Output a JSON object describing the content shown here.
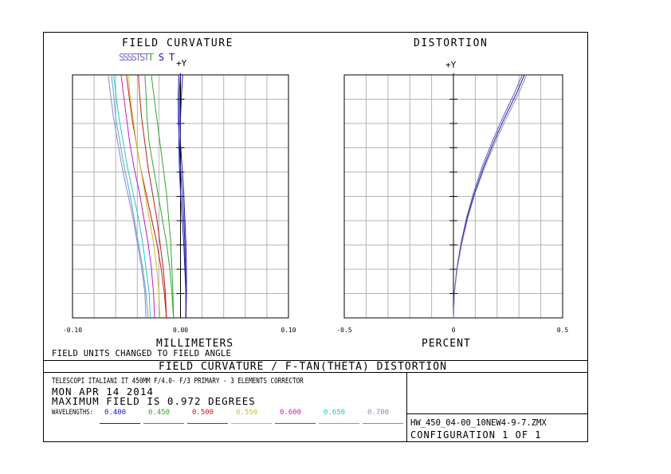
{
  "field_curvature": {
    "title": "FIELD CURVATURE",
    "legend": [
      {
        "text": "SSSSTST",
        "color": "#7a6cc4"
      },
      {
        "text": "T",
        "color": "#2ea82e"
      },
      {
        "text": "S",
        "color": "#1a1aa6"
      },
      {
        "text": "T",
        "color": "#1a1aa6"
      }
    ],
    "axis_y_label": "+Y",
    "xtick_labels": [
      "-0.10",
      "0.00",
      "0.10"
    ],
    "xlabel": "MILLIMETERS",
    "note": "FIELD UNITS CHANGED TO FIELD ANGLE"
  },
  "distortion": {
    "title": "DISTORTION",
    "axis_y_label": "+Y",
    "xtick_labels": [
      "-0.5",
      "0",
      "0.5"
    ],
    "xlabel": "PERCENT"
  },
  "banner": "FIELD CURVATURE / F-TAN(THETA) DISTORTION",
  "info": {
    "line1": "TELESCOPI ITALIANI IT 450MM F/4.0- F/3 PRIMARY -  3 ELEMENTS CORRECTOR",
    "line2": "MON APR 14 2014",
    "line3": "MAXIMUM FIELD IS 0.972 DEGREES",
    "wavelengths_label": "WAVELENGTHS:",
    "wavelengths": [
      {
        "value": "0.400",
        "color": "#1a1aa6"
      },
      {
        "value": "0.450",
        "color": "#2ea82e"
      },
      {
        "value": "0.500",
        "color": "#c41a1a"
      },
      {
        "value": "0.550",
        "color": "#c8c020"
      },
      {
        "value": "0.600",
        "color": "#c41ac4"
      },
      {
        "value": "0.650",
        "color": "#20c8c8"
      },
      {
        "value": "0.700",
        "color": "#8888c8"
      }
    ]
  },
  "file": {
    "name": "HW_450_04-00_10NEW4-9-7.ZMX",
    "configuration": "CONFIGURATION 1 OF 1"
  },
  "chart_data": [
    {
      "type": "line",
      "title": "FIELD CURVATURE",
      "xlabel": "MILLIMETERS",
      "ylabel": "+Y",
      "xlim": [
        -0.1,
        0.1
      ],
      "ylim": [
        0,
        0.972
      ],
      "grid": true,
      "y_unit": "degrees",
      "series": [
        {
          "color": "#1a1aa6",
          "points": [
            [
              0.005,
              0
            ],
            [
              0.005,
              0.1
            ],
            [
              0.0045,
              0.2
            ],
            [
              0.004,
              0.3
            ],
            [
              0.003,
              0.4
            ],
            [
              0.0015,
              0.5
            ],
            [
              0.0,
              0.6
            ],
            [
              -0.001,
              0.7
            ],
            [
              -0.002,
              0.8
            ],
            [
              -0.002,
              0.9
            ],
            [
              -0.0015,
              0.972
            ]
          ]
        },
        {
          "color": "#1a1aa6",
          "points": [
            [
              0.005,
              0
            ],
            [
              0.0055,
              0.1
            ],
            [
              0.0055,
              0.2
            ],
            [
              0.005,
              0.3
            ],
            [
              0.004,
              0.4
            ],
            [
              0.003,
              0.5
            ],
            [
              0.0015,
              0.6
            ],
            [
              0.0,
              0.7
            ],
            [
              0.0,
              0.8
            ],
            [
              0.001,
              0.9
            ],
            [
              0.002,
              0.972
            ]
          ]
        },
        {
          "color": "#1a1aa6",
          "points": [
            [
              0.005,
              0
            ],
            [
              0.005,
              0.1
            ],
            [
              0.004,
              0.2
            ],
            [
              0.003,
              0.3
            ],
            [
              0.0015,
              0.4
            ],
            [
              0.0,
              0.5
            ],
            [
              -0.001,
              0.6
            ],
            [
              -0.0015,
              0.7
            ],
            [
              -0.001,
              0.8
            ],
            [
              -0.001,
              0.9
            ],
            [
              0.0,
              0.972
            ]
          ]
        },
        {
          "color": "#2ea82e",
          "points": [
            [
              -0.0065,
              0
            ],
            [
              -0.007,
              0.1
            ],
            [
              -0.008,
              0.2
            ],
            [
              -0.009,
              0.3
            ],
            [
              -0.011,
              0.4
            ],
            [
              -0.013,
              0.5
            ],
            [
              -0.016,
              0.6
            ],
            [
              -0.019,
              0.7
            ],
            [
              -0.022,
              0.8
            ],
            [
              -0.025,
              0.9
            ],
            [
              -0.027,
              0.972
            ]
          ]
        },
        {
          "color": "#2ea82e",
          "points": [
            [
              -0.0065,
              0
            ],
            [
              -0.008,
              0.1
            ],
            [
              -0.01,
              0.2
            ],
            [
              -0.013,
              0.3
            ],
            [
              -0.017,
              0.4
            ],
            [
              -0.021,
              0.5
            ],
            [
              -0.025,
              0.6
            ],
            [
              -0.029,
              0.7
            ],
            [
              -0.031,
              0.8
            ],
            [
              -0.032,
              0.9
            ],
            [
              -0.033,
              0.972
            ]
          ]
        },
        {
          "color": "#c41a1a",
          "points": [
            [
              -0.013,
              0
            ],
            [
              -0.014,
              0.1
            ],
            [
              -0.016,
              0.2
            ],
            [
              -0.019,
              0.3
            ],
            [
              -0.022,
              0.4
            ],
            [
              -0.026,
              0.5
            ],
            [
              -0.03,
              0.6
            ],
            [
              -0.033,
              0.7
            ],
            [
              -0.036,
              0.8
            ],
            [
              -0.038,
              0.9
            ],
            [
              -0.039,
              0.972
            ]
          ]
        },
        {
          "color": "#c41a1a",
          "points": [
            [
              -0.013,
              0
            ],
            [
              -0.015,
              0.1
            ],
            [
              -0.018,
              0.2
            ],
            [
              -0.022,
              0.3
            ],
            [
              -0.027,
              0.4
            ],
            [
              -0.032,
              0.5
            ],
            [
              -0.037,
              0.6
            ],
            [
              -0.041,
              0.7
            ],
            [
              -0.045,
              0.8
            ],
            [
              -0.048,
              0.9
            ],
            [
              -0.05,
              0.972
            ]
          ]
        },
        {
          "color": "#c8c020",
          "points": [
            [
              -0.019,
              0
            ],
            [
              -0.02,
              0.1
            ],
            [
              -0.022,
              0.2
            ],
            [
              -0.025,
              0.3
            ],
            [
              -0.029,
              0.4
            ],
            [
              -0.033,
              0.5
            ],
            [
              -0.037,
              0.6
            ],
            [
              -0.041,
              0.7
            ],
            [
              -0.044,
              0.8
            ],
            [
              -0.047,
              0.9
            ],
            [
              -0.048,
              0.972
            ]
          ]
        },
        {
          "color": "#c41ac4",
          "points": [
            [
              -0.024,
              0
            ],
            [
              -0.025,
              0.1
            ],
            [
              -0.027,
              0.2
            ],
            [
              -0.03,
              0.3
            ],
            [
              -0.034,
              0.4
            ],
            [
              -0.038,
              0.5
            ],
            [
              -0.043,
              0.6
            ],
            [
              -0.047,
              0.7
            ],
            [
              -0.05,
              0.8
            ],
            [
              -0.053,
              0.9
            ],
            [
              -0.055,
              0.972
            ]
          ]
        },
        {
          "color": "#20c8c8",
          "points": [
            [
              -0.028,
              0
            ],
            [
              -0.029,
              0.1
            ],
            [
              -0.032,
              0.2
            ],
            [
              -0.035,
              0.3
            ],
            [
              -0.039,
              0.4
            ],
            [
              -0.044,
              0.5
            ],
            [
              -0.049,
              0.6
            ],
            [
              -0.053,
              0.7
            ],
            [
              -0.057,
              0.8
            ],
            [
              -0.06,
              0.9
            ],
            [
              -0.062,
              0.972
            ]
          ]
        },
        {
          "color": "#8888c8",
          "points": [
            [
              -0.032,
              0
            ],
            [
              -0.033,
              0.1
            ],
            [
              -0.036,
              0.2
            ],
            [
              -0.04,
              0.3
            ],
            [
              -0.044,
              0.4
            ],
            [
              -0.049,
              0.5
            ],
            [
              -0.054,
              0.6
            ],
            [
              -0.058,
              0.7
            ],
            [
              -0.062,
              0.8
            ],
            [
              -0.065,
              0.9
            ],
            [
              -0.067,
              0.972
            ]
          ]
        },
        {
          "color": "#6a9ad8",
          "points": [
            [
              -0.03,
              0
            ],
            [
              -0.032,
              0.1
            ],
            [
              -0.035,
              0.2
            ],
            [
              -0.039,
              0.3
            ],
            [
              -0.043,
              0.4
            ],
            [
              -0.047,
              0.5
            ],
            [
              -0.052,
              0.6
            ],
            [
              -0.056,
              0.7
            ],
            [
              -0.06,
              0.8
            ],
            [
              -0.062,
              0.9
            ],
            [
              -0.064,
              0.972
            ]
          ]
        }
      ]
    },
    {
      "type": "line",
      "title": "DISTORTION",
      "xlabel": "PERCENT",
      "ylabel": "+Y",
      "xlim": [
        -0.5,
        0.5
      ],
      "ylim": [
        0,
        0.972
      ],
      "grid": true,
      "y_unit": "degrees",
      "series": [
        {
          "color": "#5a5ab8",
          "points": [
            [
              0,
              0
            ],
            [
              0.004,
              0.1
            ],
            [
              0.016,
              0.2
            ],
            [
              0.035,
              0.3
            ],
            [
              0.06,
              0.4
            ],
            [
              0.092,
              0.5
            ],
            [
              0.13,
              0.6
            ],
            [
              0.175,
              0.7
            ],
            [
              0.225,
              0.8
            ],
            [
              0.28,
              0.9
            ],
            [
              0.315,
              0.972
            ]
          ]
        },
        {
          "color": "#1a1aa6",
          "points": [
            [
              0,
              0
            ],
            [
              0.004,
              0.1
            ],
            [
              0.017,
              0.2
            ],
            [
              0.037,
              0.3
            ],
            [
              0.063,
              0.4
            ],
            [
              0.097,
              0.5
            ],
            [
              0.137,
              0.6
            ],
            [
              0.183,
              0.7
            ],
            [
              0.234,
              0.8
            ],
            [
              0.29,
              0.9
            ],
            [
              0.325,
              0.972
            ]
          ]
        },
        {
          "color": "#8888c8",
          "points": [
            [
              0,
              0
            ],
            [
              0.0045,
              0.1
            ],
            [
              0.018,
              0.2
            ],
            [
              0.039,
              0.3
            ],
            [
              0.066,
              0.4
            ],
            [
              0.1,
              0.5
            ],
            [
              0.142,
              0.6
            ],
            [
              0.19,
              0.7
            ],
            [
              0.243,
              0.8
            ],
            [
              0.3,
              0.9
            ],
            [
              0.335,
              0.972
            ]
          ]
        }
      ]
    }
  ]
}
